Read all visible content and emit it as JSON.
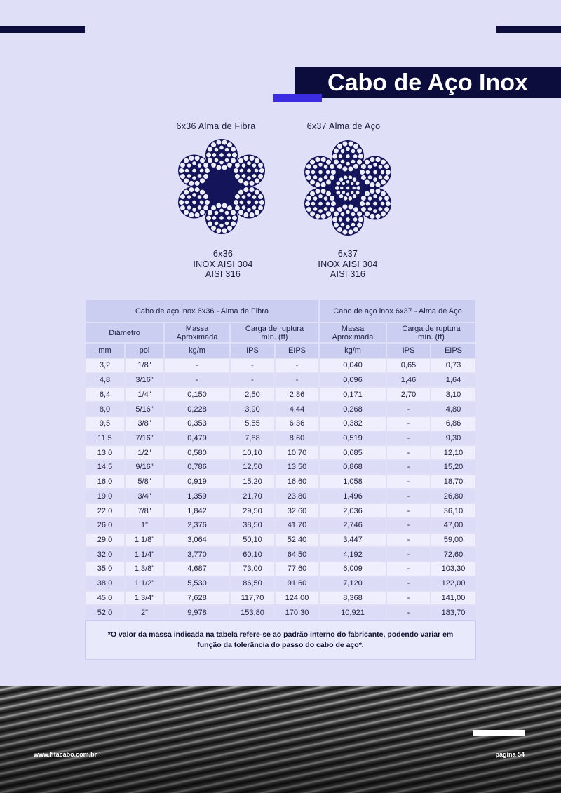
{
  "header": {
    "title": "Cabo de Aço Inox"
  },
  "diagrams": [
    {
      "label": "6x36 Alma de Fibra",
      "caption": [
        "6x36",
        "INOX AISI 304",
        "AISI 316"
      ]
    },
    {
      "label": "6x37 Alma de Aço",
      "caption": [
        "6x37",
        "INOX AISI 304",
        "AISI 316"
      ]
    }
  ],
  "table": {
    "groups": [
      "Cabo de aço inox 6x36 - Alma de Fibra",
      "Cabo de aço inox 6x37 - Alma de Aço"
    ],
    "headers": [
      "Diâmetro",
      "Massa Aproximada",
      "Carga de ruptura mín. (tf)",
      "Massa Aproximada",
      "Carga de ruptura mín. (tf)"
    ],
    "units": [
      "mm",
      "pol",
      "kg/m",
      "IPS",
      "EIPS",
      "kg/m",
      "IPS",
      "EIPS"
    ],
    "rows": [
      [
        "3,2",
        "1/8\"",
        "-",
        "-",
        "-",
        "0,040",
        "0,65",
        "0,73"
      ],
      [
        "4,8",
        "3/16\"",
        "-",
        "-",
        "-",
        "0,096",
        "1,46",
        "1,64"
      ],
      [
        "6,4",
        "1/4\"",
        "0,150",
        "2,50",
        "2,86",
        "0,171",
        "2,70",
        "3,10"
      ],
      [
        "8,0",
        "5/16\"",
        "0,228",
        "3,90",
        "4,44",
        "0,268",
        "-",
        "4,80"
      ],
      [
        "9,5",
        "3/8\"",
        "0,353",
        "5,55",
        "6,36",
        "0,382",
        "-",
        "6,86"
      ],
      [
        "11,5",
        "7/16\"",
        "0,479",
        "7,88",
        "8,60",
        "0,519",
        "-",
        "9,30"
      ],
      [
        "13,0",
        "1/2\"",
        "0,580",
        "10,10",
        "10,70",
        "0,685",
        "-",
        "12,10"
      ],
      [
        "14,5",
        "9/16\"",
        "0,786",
        "12,50",
        "13,50",
        "0,868",
        "-",
        "15,20"
      ],
      [
        "16,0",
        "5/8\"",
        "0,919",
        "15,20",
        "16,60",
        "1,058",
        "-",
        "18,70"
      ],
      [
        "19,0",
        "3/4\"",
        "1,359",
        "21,70",
        "23,80",
        "1,496",
        "-",
        "26,80"
      ],
      [
        "22,0",
        "7/8\"",
        "1,842",
        "29,50",
        "32,60",
        "2,036",
        "-",
        "36,10"
      ],
      [
        "26,0",
        "1\"",
        "2,376",
        "38,50",
        "41,70",
        "2,746",
        "-",
        "47,00"
      ],
      [
        "29,0",
        "1.1/8\"",
        "3,064",
        "50,10",
        "52,40",
        "3,447",
        "-",
        "59,00"
      ],
      [
        "32,0",
        "1.1/4\"",
        "3,770",
        "60,10",
        "64,50",
        "4,192",
        "-",
        "72,60"
      ],
      [
        "35,0",
        "1.3/8\"",
        "4,687",
        "73,00",
        "77,60",
        "6,009",
        "-",
        "103,30"
      ],
      [
        "38,0",
        "1.1/2\"",
        "5,530",
        "86,50",
        "91,60",
        "7,120",
        "-",
        "122,00"
      ],
      [
        "45,0",
        "1.3/4\"",
        "7,628",
        "117,70",
        "124,00",
        "8,368",
        "-",
        "141,00"
      ],
      [
        "52,0",
        "2\"",
        "9,978",
        "153,80",
        "170,30",
        "10,921",
        "-",
        "183,70"
      ]
    ]
  },
  "note": "*O valor da massa indicada na tabela refere-se ao padrão interno do fabricante, podendo variar em função da tolerância do passo do cabo de aço*.",
  "footer": {
    "website": "www.fitacabo.com.br",
    "page": "página 54"
  }
}
